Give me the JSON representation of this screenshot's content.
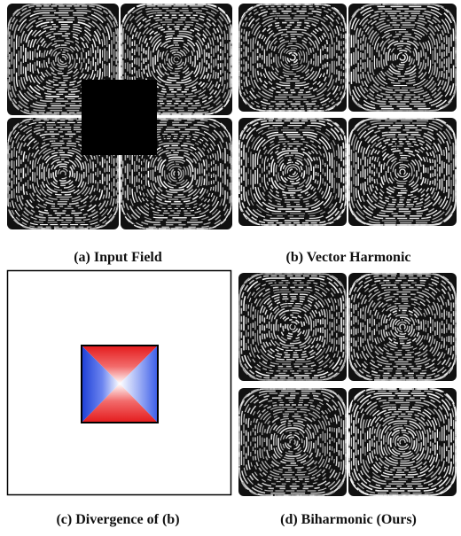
{
  "panels": [
    {
      "caption": "(a) Input Field"
    },
    {
      "caption": "(b) Vector Harmonic"
    },
    {
      "caption": "(c) Divergence of (b)"
    },
    {
      "caption": "(d) Biharmonic (Ours)"
    }
  ]
}
